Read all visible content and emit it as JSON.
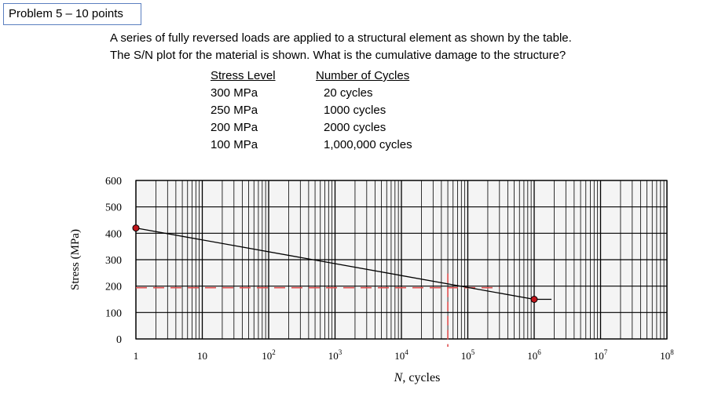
{
  "problem": {
    "label": "Problem 5 – 10 points",
    "question_line1": "A series of fully reversed loads are applied to a structural element as shown by the table.",
    "question_line2": "The S/N plot for the material is shown.  What is the cumulative damage to the structure?"
  },
  "load_table": {
    "header_stress": "Stress Level",
    "header_cycles": "Number of Cycles",
    "rows": [
      {
        "stress": "300 MPa",
        "cycles": "20 cycles"
      },
      {
        "stress": "250 MPa",
        "cycles": "1000 cycles"
      },
      {
        "stress": "200 MPa",
        "cycles": "2000 cycles"
      },
      {
        "stress": "100 MPa",
        "cycles": "1,000,000 cycles"
      }
    ]
  },
  "chart_data": {
    "type": "line",
    "x_scale": "log",
    "xlabel": "N, cycles",
    "ylabel": "Stress (MPa)",
    "xlim": [
      1,
      100000000
    ],
    "ylim": [
      0,
      600
    ],
    "y_ticks": [
      0,
      100,
      200,
      300,
      400,
      500,
      600
    ],
    "x_ticks": [
      {
        "value": 1,
        "base": "1",
        "exp": ""
      },
      {
        "value": 10,
        "base": "10",
        "exp": ""
      },
      {
        "value": 100,
        "base": "10",
        "exp": "2"
      },
      {
        "value": 1000,
        "base": "10",
        "exp": "3"
      },
      {
        "value": 10000,
        "base": "10",
        "exp": "4"
      },
      {
        "value": 100000,
        "base": "10",
        "exp": "5"
      },
      {
        "value": 1000000,
        "base": "10",
        "exp": "6"
      },
      {
        "value": 10000000,
        "base": "10",
        "exp": "7"
      },
      {
        "value": 100000000,
        "base": "10",
        "exp": "8"
      }
    ],
    "grid": true,
    "series": [
      {
        "name": "S-N curve",
        "points": [
          [
            1,
            420
          ],
          [
            1000000,
            150
          ]
        ],
        "endurance_limit": 150
      }
    ],
    "endpoint_markers": [
      [
        1,
        420
      ],
      [
        1000000,
        150
      ]
    ],
    "reference_lines": {
      "stress": 200,
      "cycles": 50000
    },
    "colors": {
      "curve": "#000000",
      "marker": "#c0161b",
      "reference": "#e05050",
      "grid": "#000000",
      "background": "#f4f4f4"
    }
  }
}
